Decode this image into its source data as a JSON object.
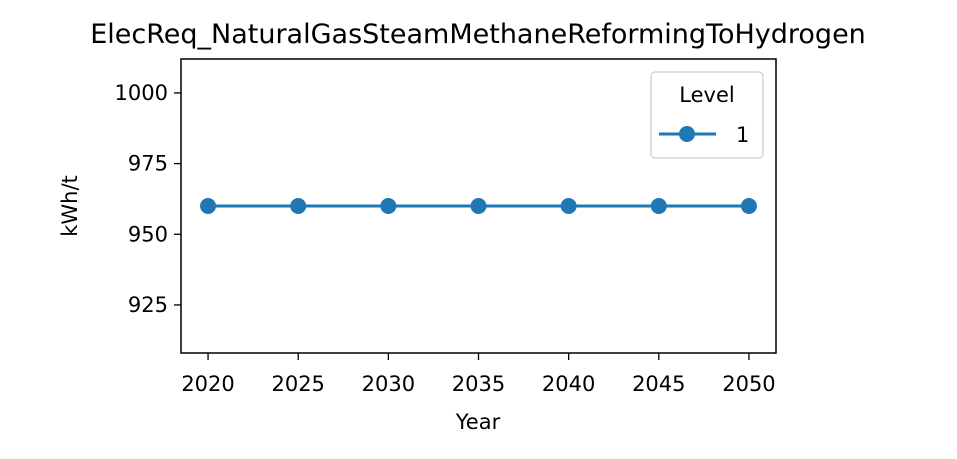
{
  "chart_data": {
    "type": "line",
    "title": "ElecReq_NaturalGasSteamMethaneReformingToHydrogen",
    "xlabel": "Year",
    "ylabel": "kWh/t",
    "x": [
      2020,
      2025,
      2030,
      2035,
      2040,
      2045,
      2050
    ],
    "xticks": [
      "2020",
      "2025",
      "2030",
      "2035",
      "2040",
      "2045",
      "2050"
    ],
    "yticks": [
      "925",
      "950",
      "975",
      "1000"
    ],
    "xlim": [
      2018.5,
      2051.5
    ],
    "ylim": [
      908,
      1012
    ],
    "series": [
      {
        "name": "1",
        "values": [
          960,
          960,
          960,
          960,
          960,
          960,
          960
        ],
        "color": "#1f77b4"
      }
    ],
    "legend": {
      "title": "Level",
      "position": "top-right"
    },
    "grid": false
  }
}
